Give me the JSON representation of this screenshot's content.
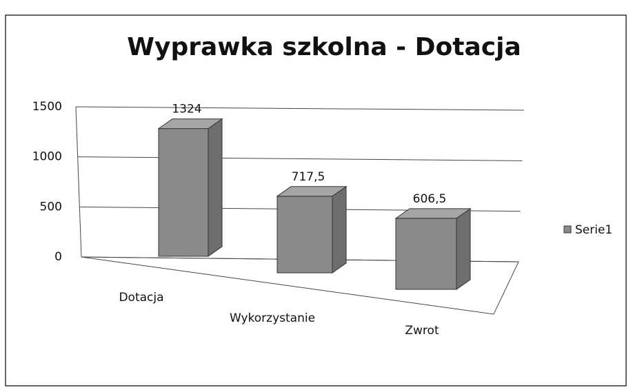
{
  "chart_data": {
    "type": "bar3d",
    "title": "Wyprawka szkolna - Dotacja",
    "categories": [
      "Dotacja",
      "Wykorzystanie",
      "Zwrot"
    ],
    "series": [
      {
        "name": "Serie1",
        "color": "#8a8a8a",
        "values": [
          1324,
          717.5,
          606.5
        ],
        "value_labels": [
          "1324",
          "717,5",
          "606,5"
        ]
      }
    ],
    "ylim": [
      0,
      1500
    ],
    "yticks": [
      0,
      500,
      1000,
      1500
    ],
    "grid": true,
    "legend": "right"
  }
}
